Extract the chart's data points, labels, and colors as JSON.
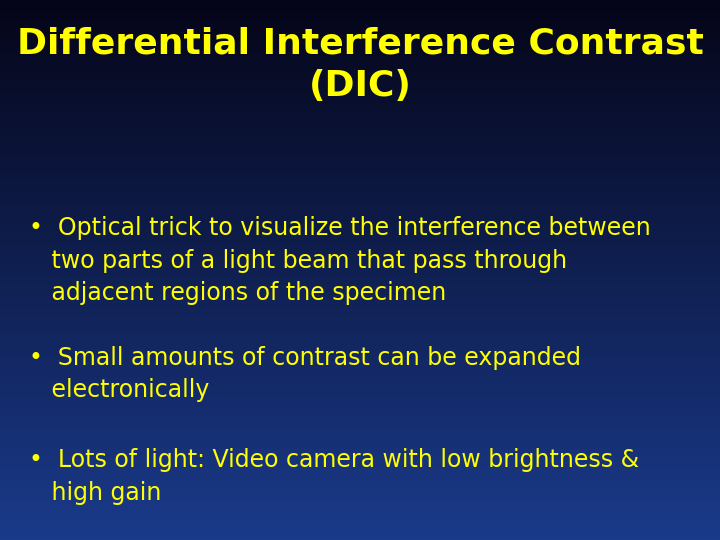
{
  "title_line1": "Differential Interference Contrast",
  "title_line2": "(DIC)",
  "title_color": "#FFFF00",
  "title_fontsize": 26,
  "bullet_color": "#FFFF00",
  "bullet_fontsize": 17,
  "bullets": [
    "•  Optical trick to visualize the interference between\n   two parts of a light beam that pass through\n   adjacent regions of the specimen",
    "•  Small amounts of contrast can be expanded\n   electronically",
    "•  Lots of light: Video camera with low brightness &\n   high gain"
  ],
  "bg_color_top": "#050518",
  "bg_color_bottom": "#1a3a8a",
  "fig_width": 7.2,
  "fig_height": 5.4,
  "dpi": 100
}
